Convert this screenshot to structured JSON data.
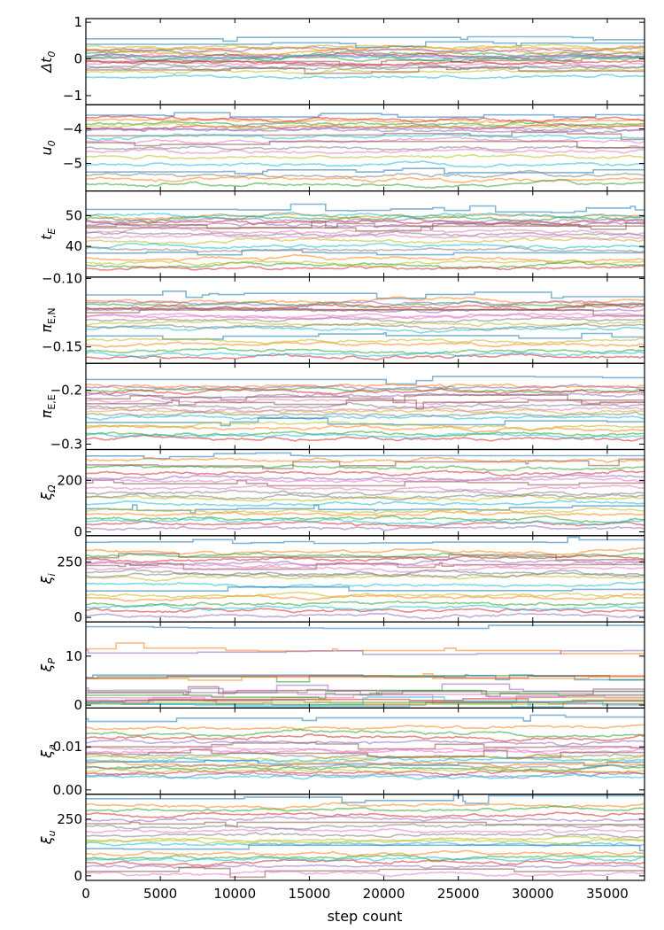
{
  "chart_data": {
    "type": "line",
    "xlabel": "step count",
    "xlim": [
      0,
      37500
    ],
    "xticks": [
      0,
      5000,
      10000,
      15000,
      20000,
      25000,
      30000,
      35000
    ],
    "xtick_labels": [
      "0",
      "5000",
      "10000",
      "15000",
      "20000",
      "25000",
      "30000",
      "35000"
    ],
    "grid": false,
    "legend": "none",
    "walker_colors": [
      "#1f77b4",
      "#ff7f0e",
      "#2ca02c",
      "#d62728",
      "#9467bd",
      "#8c564b",
      "#e377c2",
      "#7f7f7f",
      "#bcbd22",
      "#17becf"
    ],
    "panels": [
      {
        "id": "dt0",
        "ylabel_main": "Δt",
        "ylabel_sub": "0",
        "ylim": [
          -1.25,
          1.1
        ],
        "yticks": [
          -1,
          0,
          1
        ],
        "ytick_labels": [
          "−1",
          "0",
          "1"
        ],
        "walker_levels": [
          0.55,
          0.3,
          0.15,
          0.1,
          0.05,
          -0.05,
          -0.15,
          -0.25,
          -0.35,
          -0.5,
          0.4,
          0.2,
          0.0,
          -0.1,
          0.25,
          -0.3,
          0.1,
          -0.2,
          0.35,
          0.05
        ]
      },
      {
        "id": "u0",
        "ylabel_main": "u",
        "ylabel_sub": "0",
        "ylim": [
          -5.8,
          -3.3
        ],
        "yticks": [
          -5,
          -4
        ],
        "ytick_labels": [
          "−5",
          "−4"
        ],
        "walker_levels": [
          -3.6,
          -3.75,
          -3.85,
          -3.95,
          -4.05,
          -4.2,
          -4.35,
          -4.55,
          -4.8,
          -5.05,
          -5.25,
          -5.45,
          -5.6,
          -3.7,
          -4.0,
          -4.4,
          -4.65,
          -5.35,
          -3.9,
          -4.25
        ]
      },
      {
        "id": "tE",
        "ylabel_main": "t",
        "ylabel_sub": "E",
        "ylim": [
          30,
          58
        ],
        "yticks": [
          40,
          50
        ],
        "ytick_labels": [
          "40",
          "50"
        ],
        "walker_levels": [
          52,
          50,
          49,
          48,
          47,
          46,
          45,
          44,
          42,
          40,
          38,
          36,
          34,
          33,
          48.5,
          46.5,
          43,
          39,
          35,
          50.5
        ]
      },
      {
        "id": "piEN",
        "ylabel_main": "π",
        "ylabel_sub": "E,N",
        "ylim": [
          -0.162,
          -0.099
        ],
        "yticks": [
          -0.15,
          -0.1
        ],
        "ytick_labels": [
          "−0.15",
          "−0.10"
        ],
        "walker_levels": [
          -0.112,
          -0.116,
          -0.119,
          -0.121,
          -0.123,
          -0.125,
          -0.127,
          -0.13,
          -0.133,
          -0.137,
          -0.142,
          -0.148,
          -0.153,
          -0.157,
          -0.118,
          -0.122,
          -0.128,
          -0.135,
          -0.145,
          -0.155
        ]
      },
      {
        "id": "piEE",
        "ylabel_main": "π",
        "ylabel_sub": "E,E",
        "ylim": [
          -0.31,
          -0.15
        ],
        "yticks": [
          -0.3,
          -0.2
        ],
        "ytick_labels": [
          "−0.3",
          "−0.2"
        ],
        "walker_levels": [
          -0.18,
          -0.19,
          -0.2,
          -0.205,
          -0.21,
          -0.215,
          -0.22,
          -0.23,
          -0.24,
          -0.25,
          -0.26,
          -0.27,
          -0.28,
          -0.29,
          -0.195,
          -0.225,
          -0.235,
          -0.245,
          -0.265,
          -0.285
        ]
      },
      {
        "id": "xiOmega",
        "ylabel_main": "ξ",
        "ylabel_sub": "Ω",
        "ylim": [
          -15,
          320
        ],
        "yticks": [
          0,
          200
        ],
        "ytick_labels": [
          "0",
          "200"
        ],
        "walker_levels": [
          295,
          280,
          250,
          230,
          210,
          190,
          170,
          150,
          130,
          110,
          90,
          70,
          50,
          30,
          15,
          260,
          200,
          140,
          80,
          40
        ]
      },
      {
        "id": "xii",
        "ylabel_main": "ξ",
        "ylabel_sub": "i",
        "ylim": [
          -20,
          370
        ],
        "yticks": [
          0,
          250
        ],
        "ytick_labels": [
          "0",
          "250"
        ],
        "walker_levels": [
          340,
          300,
          280,
          265,
          250,
          235,
          220,
          200,
          180,
          150,
          120,
          90,
          60,
          30,
          10,
          270,
          240,
          190,
          100,
          45
        ]
      },
      {
        "id": "xiP",
        "ylabel_main": "ξ",
        "ylabel_sub": "P",
        "ylim": [
          -0.6,
          17
        ],
        "yticks": [
          0,
          10
        ],
        "ytick_labels": [
          "0",
          "10"
        ],
        "walker_levels": [
          16,
          11.5,
          5.5,
          5.5,
          3.5,
          2.5,
          1.5,
          1.0,
          0.6,
          0.3,
          5.6,
          5.4,
          2.0,
          0.8,
          11.2,
          0.4,
          1.8,
          3.0,
          0.2,
          0.5
        ]
      },
      {
        "id": "xia",
        "ylabel_main": "ξ",
        "ylabel_sub": "a",
        "ylim": [
          -0.001,
          0.019
        ],
        "yticks": [
          0.0,
          0.01
        ],
        "ytick_labels": [
          "0.00",
          "0.01"
        ],
        "walker_levels": [
          0.0165,
          0.0145,
          0.013,
          0.012,
          0.011,
          0.01,
          0.009,
          0.008,
          0.0075,
          0.007,
          0.0065,
          0.006,
          0.005,
          0.004,
          0.0035,
          0.0085,
          0.0095,
          0.0055,
          0.0045,
          0.003
        ]
      },
      {
        "id": "xiu",
        "ylabel_main": "ξ",
        "ylabel_sub": "u",
        "ylim": [
          -20,
          360
        ],
        "yticks": [
          0,
          250
        ],
        "ytick_labels": [
          "0",
          "250"
        ],
        "walker_levels": [
          340,
          310,
          290,
          270,
          250,
          230,
          200,
          180,
          160,
          140,
          120,
          100,
          80,
          60,
          40,
          20,
          10,
          220,
          150,
          70
        ]
      }
    ]
  }
}
